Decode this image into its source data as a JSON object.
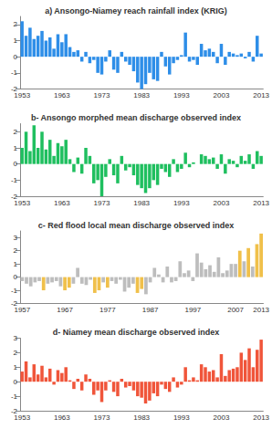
{
  "chart_data": [
    {
      "type": "bar",
      "title": "a) Ansongo-Niamey reach rainfall index (KRIG)",
      "categories": [
        "1953",
        null,
        null,
        null,
        null,
        null,
        null,
        null,
        null,
        null,
        "1963",
        null,
        null,
        null,
        null,
        null,
        null,
        null,
        null,
        null,
        "1973",
        null,
        null,
        null,
        null,
        null,
        null,
        null,
        null,
        null,
        "1983",
        null,
        null,
        null,
        null,
        null,
        null,
        null,
        null,
        null,
        "1993",
        null,
        null,
        null,
        null,
        null,
        null,
        null,
        null,
        null,
        "2003",
        null,
        null,
        null,
        null,
        null,
        null,
        null,
        null,
        null,
        "2013"
      ],
      "values": [
        2.2,
        1.3,
        1.8,
        1.1,
        1.3,
        1.6,
        1.0,
        1.2,
        0.5,
        1.4,
        0.9,
        1.4,
        0.6,
        0.3,
        0.4,
        -0.3,
        0.3,
        -0.4,
        -0.2,
        -1.0,
        -1.1,
        -0.3,
        0.4,
        -0.8,
        -1.0,
        0.3,
        -0.3,
        -0.5,
        -0.9,
        -1.6,
        -2.0,
        -1.7,
        -1.0,
        -1.4,
        -1.5,
        0.3,
        -0.6,
        -1.1,
        -0.4,
        -0.2,
        0.1,
        1.5,
        -0.3,
        -0.2,
        -0.5,
        0.8,
        0.4,
        0.5,
        0.3,
        -0.4,
        0.8,
        -0.5,
        0.3,
        0.2,
        0.1,
        0.2,
        -0.1,
        0.3,
        -0.3,
        1.3,
        0.2
      ],
      "color": "#2e8ee8",
      "ylim": [
        -2,
        2.5
      ],
      "yticks": [
        -2,
        -1,
        0,
        1,
        2
      ]
    },
    {
      "type": "bar",
      "title": "b- Ansongo morphed mean discharge observed index",
      "categories": [
        "1953",
        null,
        null,
        null,
        null,
        null,
        null,
        null,
        null,
        null,
        "1963",
        null,
        null,
        null,
        null,
        null,
        null,
        null,
        null,
        null,
        "1973",
        null,
        null,
        null,
        null,
        null,
        null,
        null,
        null,
        null,
        "1983",
        null,
        null,
        null,
        null,
        null,
        null,
        null,
        null,
        null,
        "1993",
        null,
        null,
        null,
        null,
        null,
        null,
        null,
        null,
        null,
        "2003",
        null,
        null,
        null,
        null,
        null,
        null,
        null,
        null,
        null,
        "2013"
      ],
      "values": [
        1.0,
        2.0,
        0.8,
        2.4,
        1.0,
        2.0,
        0.9,
        1.5,
        0.5,
        1.3,
        1.1,
        1.5,
        0.3,
        -0.5,
        0.4,
        -0.6,
        1.0,
        0.5,
        -1.2,
        -1.0,
        -2.0,
        -0.8,
        0.3,
        -0.7,
        -1.2,
        0.5,
        -0.4,
        -0.2,
        -0.7,
        -1.3,
        -1.5,
        -1.8,
        -1.5,
        -1.0,
        -1.3,
        -0.3,
        -0.5,
        -0.8,
        0.3,
        -0.5,
        -0.3,
        0.7,
        -0.2,
        0.1,
        0.0,
        0.6,
        0.5,
        0.3,
        0.4,
        -0.3,
        0.6,
        -0.6,
        0.3,
        0.2,
        -0.2,
        0.5,
        0.2,
        0.6,
        -0.3,
        0.8,
        0.5
      ],
      "color": "#1fbf5f",
      "ylim": [
        -2,
        2.5
      ],
      "yticks": [
        -2,
        -1,
        0,
        1,
        2
      ]
    },
    {
      "type": "bar",
      "title": "c- Red flood local mean discharge observed index",
      "categories": [
        "1957",
        null,
        null,
        null,
        null,
        null,
        null,
        null,
        null,
        null,
        "1967",
        null,
        null,
        null,
        null,
        null,
        null,
        null,
        null,
        null,
        "1977",
        null,
        null,
        null,
        null,
        null,
        null,
        null,
        null,
        null,
        "1987",
        null,
        null,
        null,
        null,
        null,
        null,
        null,
        null,
        null,
        "1997",
        null,
        null,
        null,
        null,
        null,
        null,
        null,
        null,
        null,
        "2007",
        null,
        null,
        null,
        null,
        null,
        "2013"
      ],
      "values": [
        -0.3,
        -0.5,
        -0.7,
        -0.4,
        -0.3,
        -1.0,
        -0.5,
        -0.4,
        -0.3,
        -0.7,
        -1.0,
        -0.8,
        -0.5,
        0.7,
        -0.5,
        -0.6,
        -0.2,
        -1.2,
        -1.0,
        -0.4,
        -0.8,
        -0.3,
        -0.5,
        -0.2,
        -1.1,
        -0.8,
        -0.5,
        -1.2,
        -0.9,
        -1.3,
        -0.4,
        0.7,
        0.2,
        -0.4,
        0.8,
        -0.4,
        -0.3,
        1.2,
        0.3,
        0.5,
        -0.3,
        1.8,
        1.1,
        0.6,
        0.9,
        0.4,
        1.5,
        0.3,
        0.5,
        1.0,
        1.0,
        2.0,
        1.2,
        2.2,
        0.8,
        2.5,
        3.3
      ],
      "colors": [
        "#bdbdbd",
        "#bdbdbd",
        "#bdbdbd",
        "#bdbdbd",
        "#bdbdbd",
        "#f0c04a",
        "#bdbdbd",
        "#bdbdbd",
        "#bdbdbd",
        "#bdbdbd",
        "#f0c04a",
        "#f0c04a",
        "#bdbdbd",
        "#bdbdbd",
        "#bdbdbd",
        "#bdbdbd",
        "#bdbdbd",
        "#f0c04a",
        "#f0c04a",
        "#bdbdbd",
        "#f0c04a",
        "#bdbdbd",
        "#bdbdbd",
        "#bdbdbd",
        "#bdbdbd",
        "#bdbdbd",
        "#bdbdbd",
        "#f0c04a",
        "#f0c04a",
        "#bdbdbd",
        "#bdbdbd",
        "#bdbdbd",
        "#bdbdbd",
        "#bdbdbd",
        "#bdbdbd",
        "#bdbdbd",
        "#bdbdbd",
        "#bdbdbd",
        "#bdbdbd",
        "#bdbdbd",
        "#bdbdbd",
        "#bdbdbd",
        "#bdbdbd",
        "#bdbdbd",
        "#bdbdbd",
        "#bdbdbd",
        "#bdbdbd",
        "#bdbdbd",
        "#bdbdbd",
        "#bdbdbd",
        "#bdbdbd",
        "#f0c04a",
        "#bdbdbd",
        "#f0c04a",
        "#bdbdbd",
        "#f0c04a",
        "#f0c04a"
      ],
      "ylim": [
        -2,
        3.5
      ],
      "yticks": [
        -2,
        -1,
        0,
        1,
        2,
        3
      ]
    },
    {
      "type": "bar",
      "title": "d- Niamey mean discharge observed index",
      "categories": [
        "1953",
        null,
        null,
        null,
        null,
        null,
        null,
        null,
        null,
        null,
        "1963",
        null,
        null,
        null,
        null,
        null,
        null,
        null,
        null,
        null,
        "1973",
        null,
        null,
        null,
        null,
        null,
        null,
        null,
        null,
        null,
        "1983",
        null,
        null,
        null,
        null,
        null,
        null,
        null,
        null,
        null,
        "1993",
        null,
        null,
        null,
        null,
        null,
        null,
        null,
        null,
        null,
        "2003",
        null,
        null,
        null,
        null,
        null,
        null,
        null,
        null,
        null,
        "2013"
      ],
      "values": [
        0.7,
        1.4,
        0.3,
        1.2,
        0.5,
        1.1,
        0.3,
        0.9,
        -0.2,
        0.8,
        0.6,
        1.0,
        0.1,
        -0.5,
        0.2,
        -0.6,
        0.5,
        0.2,
        -0.9,
        -0.6,
        -1.4,
        -0.6,
        0.1,
        -0.7,
        -1.0,
        0.2,
        -0.4,
        -0.3,
        -0.6,
        -1.0,
        -1.1,
        -1.5,
        -1.3,
        -0.8,
        -1.0,
        -0.2,
        -0.5,
        -0.7,
        0.3,
        -0.4,
        -0.2,
        1.0,
        0.1,
        0.3,
        0.1,
        1.2,
        1.0,
        0.7,
        0.8,
        0.3,
        1.9,
        0.4,
        0.8,
        0.9,
        1.0,
        2.0,
        1.5,
        2.3,
        1.0,
        2.2,
        2.9
      ],
      "color": "#f0553a",
      "ylim": [
        -2,
        3
      ],
      "yticks": [
        -2,
        -1,
        0,
        1,
        2,
        3
      ]
    }
  ]
}
